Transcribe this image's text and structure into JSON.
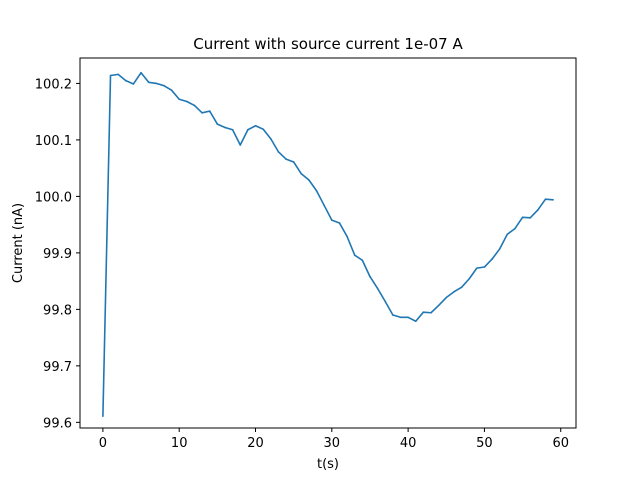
{
  "chart_data": {
    "type": "line",
    "title": "Current with source current 1e-07 A",
    "xlabel": "t(s)",
    "ylabel": "Current (nA)",
    "xlim": [
      -3,
      62
    ],
    "ylim": [
      99.59,
      100.245
    ],
    "x_ticks": [
      0,
      10,
      20,
      30,
      40,
      50,
      60
    ],
    "y_ticks": [
      99.6,
      99.7,
      99.8,
      99.9,
      100.0,
      100.1,
      100.2
    ],
    "grid": false,
    "series": [
      {
        "color": "#1f77b4",
        "x": [
          0,
          1,
          2,
          3,
          4,
          5,
          6,
          7,
          8,
          9,
          10,
          11,
          12,
          13,
          14,
          15,
          16,
          17,
          18,
          19,
          20,
          21,
          22,
          23,
          24,
          25,
          26,
          27,
          28,
          29,
          30,
          31,
          32,
          33,
          34,
          35,
          36,
          37,
          38,
          39,
          40,
          41,
          42,
          43,
          44,
          45,
          46,
          47,
          48,
          49,
          50,
          51,
          52,
          53,
          54,
          55,
          56,
          57,
          58,
          59
        ],
        "values": [
          99.611,
          100.214,
          100.216,
          100.205,
          100.199,
          100.219,
          100.202,
          100.2,
          100.196,
          100.188,
          100.172,
          100.168,
          100.161,
          100.148,
          100.151,
          100.128,
          100.122,
          100.118,
          100.091,
          100.118,
          100.125,
          100.119,
          100.102,
          100.079,
          100.066,
          100.061,
          100.04,
          100.029,
          100.01,
          99.984,
          99.958,
          99.953,
          99.929,
          99.896,
          99.887,
          99.858,
          99.837,
          99.814,
          99.79,
          99.786,
          99.786,
          99.779,
          99.795,
          99.794,
          99.807,
          99.821,
          99.831,
          99.839,
          99.854,
          99.873,
          99.875,
          99.889,
          99.907,
          99.933,
          99.943,
          99.963,
          99.962,
          99.976,
          99.995,
          99.994
        ]
      }
    ]
  }
}
